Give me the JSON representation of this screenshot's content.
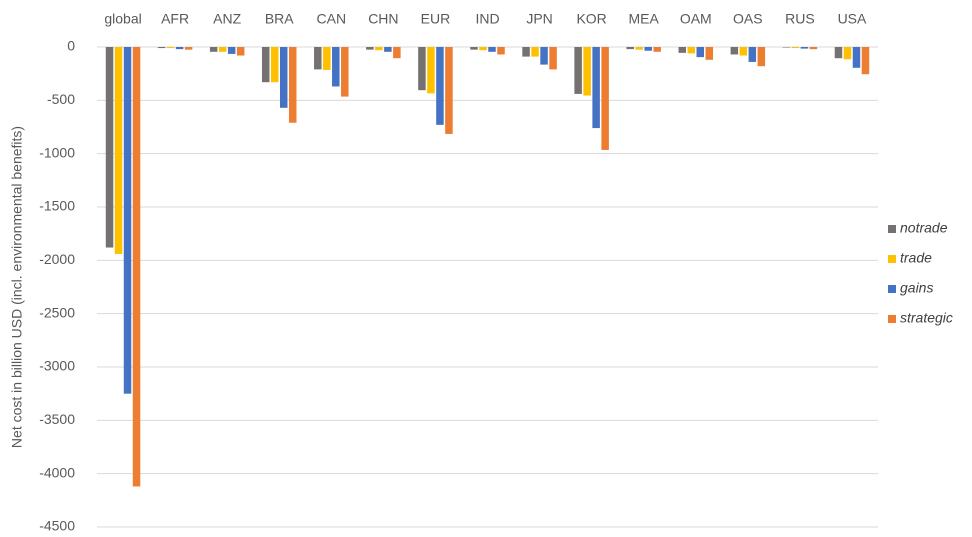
{
  "chart_data": {
    "type": "bar",
    "y_label": "Net cost in billion USD (incl. environmental benefits)",
    "categories": [
      "global",
      "AFR",
      "ANZ",
      "BRA",
      "CAN",
      "CHN",
      "EUR",
      "IND",
      "JPN",
      "KOR",
      "MEA",
      "OAM",
      "OAS",
      "RUS",
      "USA"
    ],
    "series": [
      {
        "name": "notrade",
        "color": "#767171",
        "values": [
          -1880,
          -10,
          -45,
          -330,
          -210,
          -25,
          -405,
          -25,
          -90,
          -440,
          -20,
          -55,
          -70,
          -5,
          -105
        ]
      },
      {
        "name": "trade",
        "color": "#ffc000",
        "values": [
          -1940,
          -10,
          -45,
          -330,
          -215,
          -30,
          -435,
          -30,
          -90,
          -455,
          -25,
          -60,
          -80,
          -10,
          -115
        ]
      },
      {
        "name": "gains",
        "color": "#4472c4",
        "values": [
          -3250,
          -20,
          -65,
          -570,
          -370,
          -45,
          -730,
          -45,
          -165,
          -760,
          -35,
          -95,
          -140,
          -15,
          -195
        ]
      },
      {
        "name": "strategic",
        "color": "#ed7d31",
        "values": [
          -4120,
          -25,
          -80,
          -710,
          -465,
          -105,
          -815,
          -70,
          -210,
          -965,
          -45,
          -120,
          -180,
          -20,
          -255
        ]
      }
    ],
    "ylim": [
      -4500,
      0
    ],
    "yticks": [
      0,
      -500,
      -1000,
      -1500,
      -2000,
      -2500,
      -3000,
      -3500,
      -4000,
      -4500
    ],
    "grid": true,
    "legend": "right"
  }
}
